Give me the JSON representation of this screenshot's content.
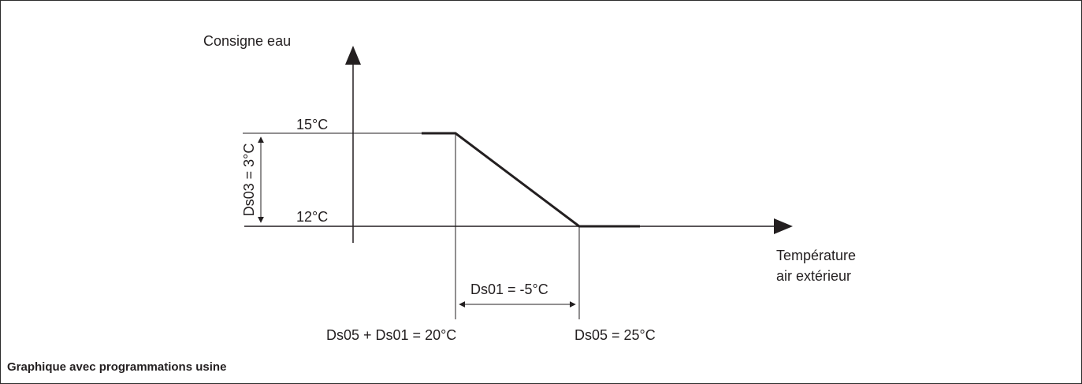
{
  "diagram": {
    "y_axis_label": "Consigne eau",
    "x_axis_label_line1": "Température",
    "x_axis_label_line2": "air extérieur",
    "y_tick_high": "15°C",
    "y_tick_low": "12°C",
    "ds03_label": "Ds03 = 3°C",
    "ds01_label_prefix": "Ds01 = ",
    "ds01_label_value": "-5°C",
    "x_mark_left": "Ds05 + Ds01 = 20°C",
    "x_mark_right": "Ds05 = 25°C",
    "caption": "Graphique avec programmations usine",
    "line_color": "#231f20"
  }
}
